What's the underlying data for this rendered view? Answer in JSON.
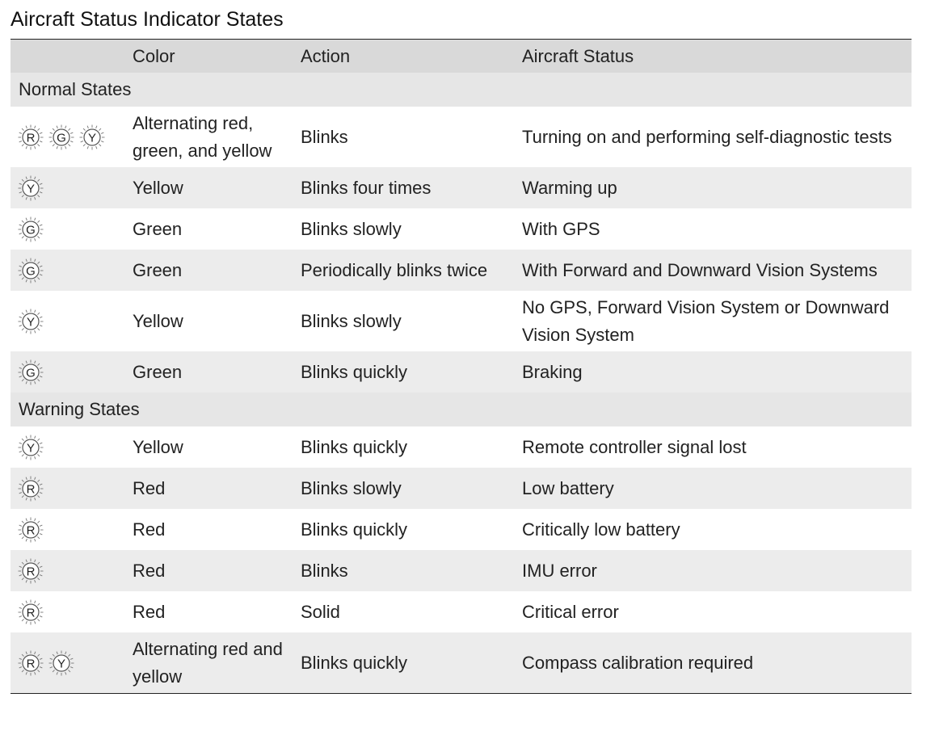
{
  "title": "Aircraft Status Indicator States",
  "columns": [
    "",
    "Color",
    "Action",
    "Aircraft Status"
  ],
  "sections": [
    {
      "name": "Normal States",
      "rows": [
        {
          "icons": [
            "R",
            "G",
            "Y"
          ],
          "color": "Alternating red, green, and yellow",
          "action": "Blinks",
          "status": "Turning on and performing self-diagnostic tests",
          "lines": 2
        },
        {
          "icons": [
            "Y"
          ],
          "color": "Yellow",
          "action": "Blinks four times",
          "status": "Warming up",
          "lines": 1
        },
        {
          "icons": [
            "G"
          ],
          "color": "Green",
          "action": "Blinks slowly",
          "status": "With GPS",
          "lines": 1
        },
        {
          "icons": [
            "G"
          ],
          "color": "Green",
          "action": "Periodically blinks twice",
          "status": "With Forward and Downward Vision Systems",
          "lines": 1
        },
        {
          "icons": [
            "Y"
          ],
          "color": "Yellow",
          "action": "Blinks slowly",
          "status": "No GPS, Forward Vision System or Downward Vision System",
          "lines": 2
        },
        {
          "icons": [
            "G"
          ],
          "color": "Green",
          "action": "Blinks quickly",
          "status": "Braking",
          "lines": 1
        }
      ]
    },
    {
      "name": "Warning States",
      "rows": [
        {
          "icons": [
            "Y"
          ],
          "color": "Yellow",
          "action": "Blinks quickly",
          "status": "Remote controller signal lost",
          "lines": 1
        },
        {
          "icons": [
            "R"
          ],
          "color": "Red",
          "action": "Blinks slowly",
          "status": "Low battery",
          "lines": 1
        },
        {
          "icons": [
            "R"
          ],
          "color": "Red",
          "action": "Blinks quickly",
          "status": "Critically low battery",
          "lines": 1
        },
        {
          "icons": [
            "R"
          ],
          "color": "Red",
          "action": "Blinks",
          "status": "IMU error",
          "lines": 1
        },
        {
          "icons": [
            "R"
          ],
          "color": "Red",
          "action": "Solid",
          "status": "Critical error",
          "lines": 1
        },
        {
          "icons": [
            "R",
            "Y"
          ],
          "color": "Alternating red and yellow",
          "action": "Blinks quickly",
          "status": "Compass calibration required",
          "lines": 2
        }
      ]
    }
  ]
}
